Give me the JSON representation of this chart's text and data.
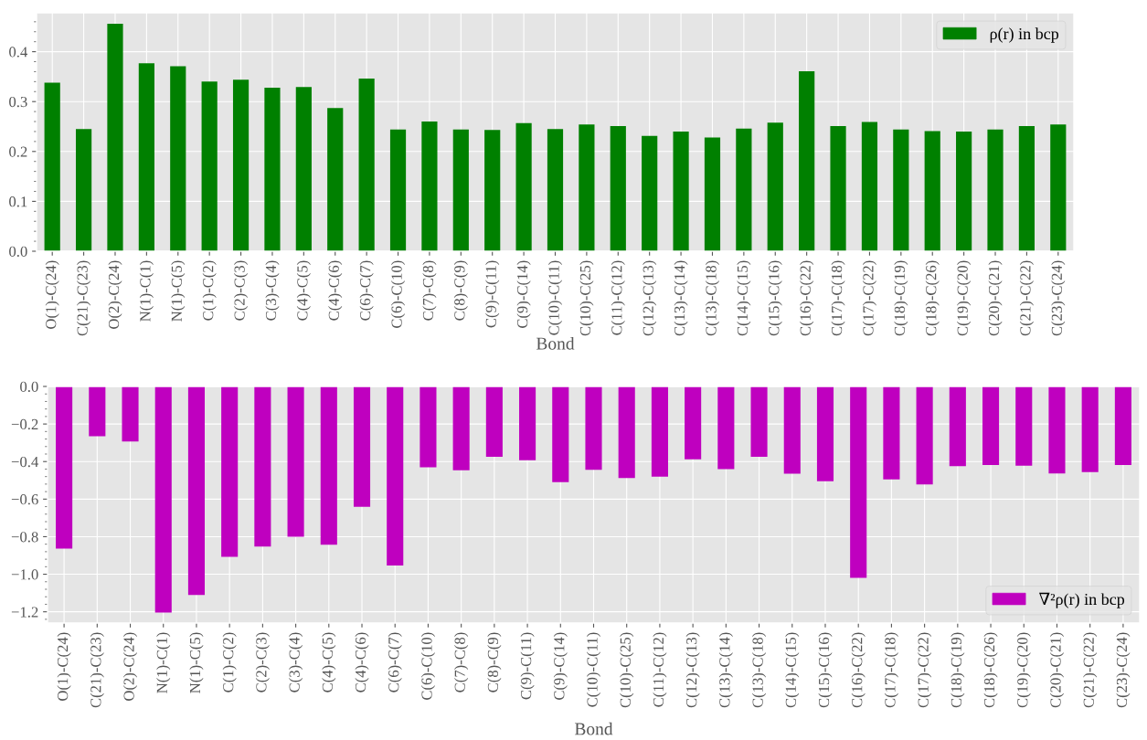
{
  "chart_data": [
    {
      "type": "bar",
      "xlabel": "Bond",
      "categories": [
        "O(1)-C(24)",
        "C(21)-C(23)",
        "O(2)-C(24)",
        "N(1)-C(1)",
        "N(1)-C(5)",
        "C(1)-C(2)",
        "C(2)-C(3)",
        "C(3)-C(4)",
        "C(4)-C(5)",
        "C(4)-C(6)",
        "C(6)-C(7)",
        "C(6)-C(10)",
        "C(7)-C(8)",
        "C(8)-C(9)",
        "C(9)-C(11)",
        "C(9)-C(14)",
        "C(10)-C(11)",
        "C(10)-C(25)",
        "C(11)-C(12)",
        "C(12)-C(13)",
        "C(13)-C(14)",
        "C(13)-C(18)",
        "C(14)-C(15)",
        "C(15)-C(16)",
        "C(16)-C(22)",
        "C(17)-C(18)",
        "C(17)-C(22)",
        "C(18)-C(19)",
        "C(18)-C(26)",
        "C(19)-C(20)",
        "C(20)-C(21)",
        "C(21)-C(22)",
        "C(23)-C(24)"
      ],
      "series": [
        {
          "name": "ρ(r) in bcp",
          "color": "#008000",
          "values": [
            0.338,
            0.245,
            0.456,
            0.377,
            0.371,
            0.34,
            0.344,
            0.328,
            0.329,
            0.287,
            0.346,
            0.244,
            0.26,
            0.244,
            0.243,
            0.257,
            0.245,
            0.254,
            0.251,
            0.231,
            0.24,
            0.228,
            0.246,
            0.258,
            0.361,
            0.251,
            0.259,
            0.244,
            0.241,
            0.24,
            0.244,
            0.251,
            0.254
          ]
        }
      ],
      "ylim": [
        0,
        0.478
      ],
      "yticks": [
        {
          "value": 0.0,
          "label": "0.0"
        },
        {
          "value": 0.1,
          "label": "0.1"
        },
        {
          "value": 0.2,
          "label": "0.2"
        },
        {
          "value": 0.3,
          "label": "0.3"
        },
        {
          "value": 0.4,
          "label": "0.4"
        }
      ],
      "grid": true,
      "legend": "top right"
    },
    {
      "type": "bar",
      "xlabel": "Bond",
      "categories": [
        "O(1)-C(24)",
        "C(21)-C(23)",
        "O(2)-C(24)",
        "N(1)-C(1)",
        "N(1)-C(5)",
        "C(1)-C(2)",
        "C(2)-C(3)",
        "C(3)-C(4)",
        "C(4)-C(5)",
        "C(4)-C(6)",
        "C(6)-C(7)",
        "C(6)-C(10)",
        "C(7)-C(8)",
        "C(8)-C(9)",
        "C(9)-C(11)",
        "C(9)-C(14)",
        "C(10)-C(11)",
        "C(10)-C(25)",
        "C(11)-C(12)",
        "C(12)-C(13)",
        "C(13)-C(14)",
        "C(13)-C(18)",
        "C(14)-C(15)",
        "C(15)-C(16)",
        "C(16)-C(22)",
        "C(17)-C(18)",
        "C(17)-C(22)",
        "C(18)-C(19)",
        "C(18)-C(26)",
        "C(19)-C(20)",
        "C(20)-C(21)",
        "C(21)-C(22)",
        "C(23)-C(24)"
      ],
      "series": [
        {
          "name": "∇²ρ(r) in bcp",
          "color": "#bf00bf",
          "values": [
            -0.864,
            -0.265,
            -0.293,
            -1.204,
            -1.11,
            -0.907,
            -0.853,
            -0.8,
            -0.843,
            -0.641,
            -0.953,
            -0.431,
            -0.446,
            -0.374,
            -0.393,
            -0.51,
            -0.444,
            -0.488,
            -0.48,
            -0.388,
            -0.44,
            -0.374,
            -0.465,
            -0.505,
            -1.019,
            -0.495,
            -0.522,
            -0.425,
            -0.418,
            -0.422,
            -0.463,
            -0.456,
            -0.418
          ]
        }
      ],
      "ylim": [
        -1.26,
        0
      ],
      "yticks": [
        {
          "value": -1.2,
          "label": "−1.2"
        },
        {
          "value": -1.0,
          "label": "−1.0"
        },
        {
          "value": -0.8,
          "label": "−0.8"
        },
        {
          "value": -0.6,
          "label": "−0.6"
        },
        {
          "value": -0.4,
          "label": "−0.4"
        },
        {
          "value": -0.2,
          "label": "−0.2"
        },
        {
          "value": 0.0,
          "label": "0.0"
        }
      ],
      "grid": true,
      "legend": "bottom right"
    }
  ]
}
